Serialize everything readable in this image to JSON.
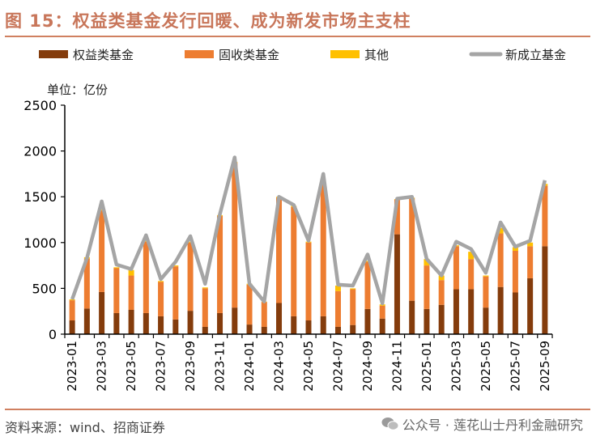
{
  "title": "图 15：权益类基金发行回暖、成为新发市场主支柱",
  "source": "资料来源：wind、招商证券",
  "watermark": "公众号 · 莲花山士丹利金融研究",
  "watermark_icon": "wechat-icon",
  "chart_data": {
    "type": "bar",
    "stacked": true,
    "unit_label": "单位：亿份",
    "ylim": [
      0,
      2500
    ],
    "yticks": [
      0,
      500,
      1000,
      1500,
      2000,
      2500
    ],
    "grid": false,
    "legend_position": "top",
    "categories": [
      "2023-01",
      "2023-02",
      "2023-03",
      "2023-04",
      "2023-05",
      "2023-06",
      "2023-07",
      "2023-08",
      "2023-09",
      "2023-10",
      "2023-11",
      "2023-12",
      "2024-01",
      "2024-02",
      "2024-03",
      "2024-04",
      "2024-05",
      "2024-06",
      "2024-07",
      "2024-08",
      "2024-09",
      "2024-10",
      "2024-11",
      "2024-12",
      "2025-01",
      "2025-02",
      "2025-03",
      "2025-04",
      "2025-05",
      "2025-06",
      "2025-07",
      "2025-08",
      "2025-09"
    ],
    "xtick_labels": [
      "2023-01",
      "2023-03",
      "2023-05",
      "2023-07",
      "2023-09",
      "2023-11",
      "2024-01",
      "2024-03",
      "2024-05",
      "2024-07",
      "2024-09",
      "2024-11",
      "2025-01",
      "2025-03",
      "2025-05",
      "2025-07",
      "2025-09"
    ],
    "series": [
      {
        "name": "权益类基金",
        "kind": "bar",
        "color": "#843C0C",
        "values": [
          150,
          280,
          460,
          230,
          265,
          230,
          195,
          160,
          255,
          80,
          230,
          290,
          105,
          80,
          340,
          195,
          150,
          195,
          80,
          100,
          275,
          170,
          1090,
          365,
          275,
          320,
          490,
          490,
          290,
          515,
          455,
          610,
          960
        ]
      },
      {
        "name": "固收类基金",
        "kind": "bar",
        "color": "#ED7D31",
        "values": [
          220,
          545,
          890,
          490,
          375,
          780,
          375,
          580,
          745,
          420,
          1060,
          1580,
          435,
          270,
          1150,
          1195,
          850,
          1445,
          390,
          390,
          515,
          140,
          380,
          1115,
          475,
          270,
          470,
          330,
          340,
          585,
          455,
          350,
          660
        ]
      },
      {
        "name": "其他",
        "kind": "bar",
        "color": "#FFC000",
        "values": [
          10,
          15,
          10,
          10,
          60,
          10,
          10,
          10,
          10,
          10,
          10,
          10,
          10,
          5,
          10,
          10,
          10,
          10,
          60,
          10,
          10,
          15,
          5,
          10,
          70,
          50,
          10,
          80,
          10,
          60,
          40,
          40,
          20
        ]
      },
      {
        "name": "新成立基金",
        "kind": "line",
        "color": "#A5A5A5",
        "values": [
          380,
          830,
          1450,
          760,
          710,
          1080,
          600,
          790,
          1070,
          550,
          1310,
          1930,
          550,
          355,
          1500,
          1410,
          1020,
          1750,
          540,
          530,
          870,
          335,
          1480,
          1500,
          820,
          640,
          1010,
          930,
          670,
          1220,
          955,
          1020,
          1680
        ]
      }
    ]
  }
}
